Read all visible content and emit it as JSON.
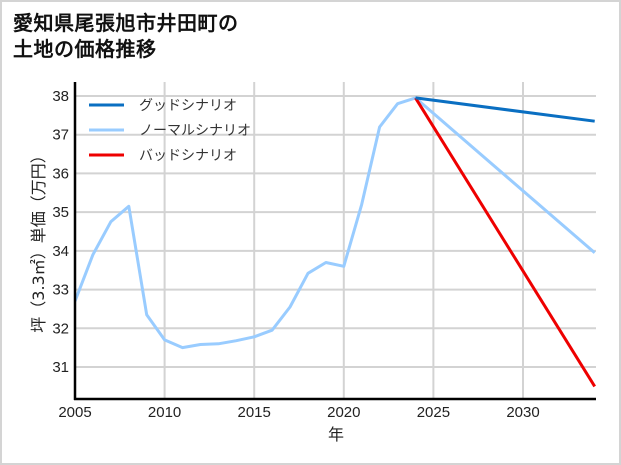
{
  "title": {
    "line1": "愛知県尾張旭市井田町の",
    "line2": "土地の価格推移"
  },
  "chart_data": {
    "type": "line",
    "title": "愛知県尾張旭市井田町の土地の価格推移",
    "xlabel": "年",
    "ylabel": "坪（3.3㎡）単価（万円）",
    "xlim": [
      2005,
      2034
    ],
    "ylim": [
      30.2,
      38.4
    ],
    "x_ticks": [
      2005,
      2010,
      2015,
      2020,
      2025,
      2030
    ],
    "y_ticks": [
      31,
      32,
      33,
      34,
      35,
      36,
      37,
      38
    ],
    "grid": true,
    "legend_position": "upper-left",
    "series": [
      {
        "name": "グッドシナリオ",
        "color": "#0a6fc2",
        "x": [
          2024,
          2034
        ],
        "values": [
          37.95,
          37.35
        ]
      },
      {
        "name": "ノーマルシナリオ",
        "color": "#99ccff",
        "x": [
          2005,
          2006,
          2007,
          2008,
          2009,
          2010,
          2011,
          2012,
          2013,
          2014,
          2015,
          2016,
          2017,
          2018,
          2019,
          2020,
          2021,
          2022,
          2023,
          2024,
          2034
        ],
        "values": [
          32.7,
          33.9,
          34.75,
          35.15,
          32.35,
          31.7,
          31.5,
          31.58,
          31.6,
          31.68,
          31.78,
          31.95,
          32.55,
          33.42,
          33.7,
          33.6,
          35.2,
          37.2,
          37.8,
          37.95,
          33.95
        ]
      },
      {
        "name": "バッドシナリオ",
        "color": "#ee0000",
        "x": [
          2024,
          2034
        ],
        "values": [
          37.95,
          30.5
        ]
      }
    ]
  }
}
